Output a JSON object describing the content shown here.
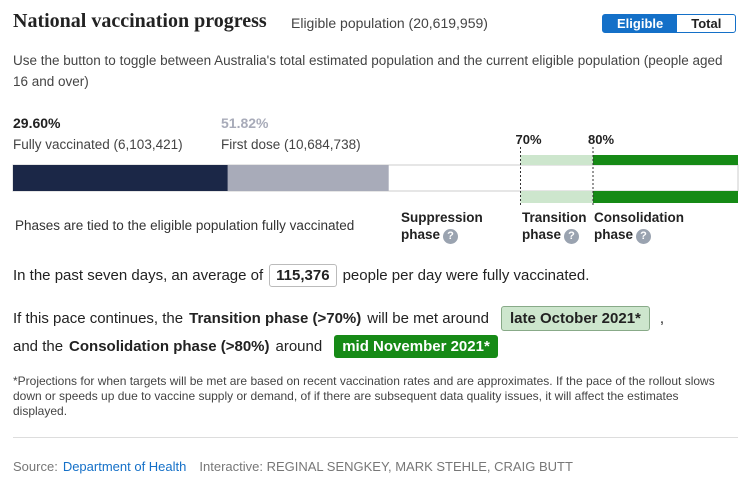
{
  "header": {
    "title": "National vaccination progress",
    "subtitle": "Eligible population (20,619,959)"
  },
  "toggle": {
    "options": [
      "Eligible",
      "Total"
    ],
    "selected_index": 0
  },
  "description": "Use the button to toggle between Australia's total estimated population and the current eligible population (people aged 16 and over)",
  "progress": {
    "scale": [
      0,
      100
    ],
    "fully_vaccinated": {
      "value": 29.6,
      "value_label": "29.60%",
      "label": "Fully vaccinated (6,103,421)",
      "color": "#1b2747"
    },
    "first_dose": {
      "value": 51.82,
      "value_label": "51.82%",
      "label": "First dose (10,684,738)",
      "color": "#a8abb9"
    },
    "thresholds": [
      {
        "value": 70,
        "label": "70%",
        "color": "#cde6cd"
      },
      {
        "value": 80,
        "label": "80%",
        "color": "#168a16"
      }
    ]
  },
  "phases": {
    "note": "Phases are tied to the eligible population fully vaccinated",
    "names": [
      "Suppression phase",
      "Transition phase",
      "Consolidation phase"
    ],
    "help_icon": "?"
  },
  "average": {
    "before": "In the past seven days, an average of",
    "value": "115,376",
    "after": "people per day were fully vaccinated."
  },
  "projection": {
    "line1": {
      "before": "If this pace continues, the",
      "phase": "Transition phase (>70%)",
      "middle": "will be met around",
      "date": "late October 2021*",
      "after": ","
    },
    "line2": {
      "before": "and the",
      "phase": "Consolidation phase (>80%)",
      "middle": "around",
      "date": "mid November 2021*"
    }
  },
  "footnote": "*Projections for when targets will be met are based on recent vaccination rates and are approximates. If the pace of the rollout slows down or speeds up due to vaccine supply or demand, of if there are subsequent data quality issues, it will affect the estimates displayed.",
  "source": {
    "label": "Source:",
    "link": "Department of Health",
    "credits": "Interactive: REGINAL SENGKEY, MARK STEHLE, CRAIG BUTT"
  }
}
